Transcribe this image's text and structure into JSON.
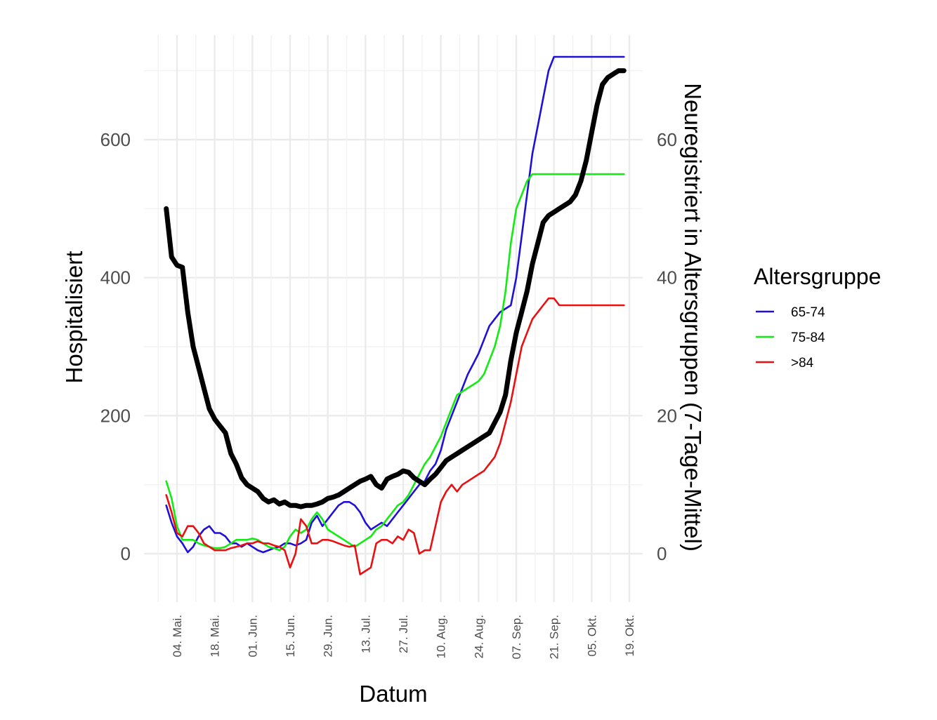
{
  "chart_data": {
    "type": "line",
    "xlabel": "Datum",
    "ylabel": "Hospitalisiert",
    "y2label": "Neuregistriert in Altersgruppen (7-Tage-Mittel)",
    "x_ticks": [
      "04. Mai.",
      "18. Mai.",
      "01. Jun.",
      "15. Jun.",
      "29. Jun.",
      "13. Jul.",
      "27. Jul.",
      "10. Aug.",
      "24. Aug.",
      "07. Sep.",
      "21. Sep.",
      "05. Okt.",
      "19. Okt."
    ],
    "y_ticks": [
      0,
      200,
      400,
      600
    ],
    "y2_ticks": [
      0,
      20,
      40,
      60
    ],
    "ylim": [
      -60,
      740
    ],
    "y2lim": [
      -6,
      74
    ],
    "grid": true,
    "legend": {
      "title": "Altersgruppe",
      "placement": "right",
      "items": [
        {
          "label": "65-74",
          "color": "#1f10d8"
        },
        {
          "label": "75-84",
          "color": "#12ec12"
        },
        {
          "label": ">84",
          "color": "#e81010"
        }
      ]
    },
    "x": [
      "2020-04-30",
      "2020-05-02",
      "2020-05-04",
      "2020-05-06",
      "2020-05-08",
      "2020-05-10",
      "2020-05-12",
      "2020-05-14",
      "2020-05-16",
      "2020-05-18",
      "2020-05-20",
      "2020-05-22",
      "2020-05-24",
      "2020-05-26",
      "2020-05-28",
      "2020-05-30",
      "2020-06-01",
      "2020-06-03",
      "2020-06-05",
      "2020-06-07",
      "2020-06-09",
      "2020-06-11",
      "2020-06-13",
      "2020-06-15",
      "2020-06-17",
      "2020-06-19",
      "2020-06-21",
      "2020-06-23",
      "2020-06-25",
      "2020-06-27",
      "2020-06-29",
      "2020-07-01",
      "2020-07-03",
      "2020-07-05",
      "2020-07-07",
      "2020-07-09",
      "2020-07-11",
      "2020-07-13",
      "2020-07-15",
      "2020-07-17",
      "2020-07-19",
      "2020-07-21",
      "2020-07-23",
      "2020-07-25",
      "2020-07-27",
      "2020-07-29",
      "2020-07-31",
      "2020-08-02",
      "2020-08-04",
      "2020-08-06",
      "2020-08-08",
      "2020-08-10",
      "2020-08-12",
      "2020-08-14",
      "2020-08-16",
      "2020-08-18",
      "2020-08-20",
      "2020-08-22",
      "2020-08-24",
      "2020-08-26",
      "2020-08-28",
      "2020-08-30",
      "2020-09-01",
      "2020-09-03",
      "2020-09-05",
      "2020-09-07",
      "2020-09-09",
      "2020-09-11",
      "2020-09-13",
      "2020-09-15",
      "2020-09-17",
      "2020-09-19",
      "2020-09-21",
      "2020-09-23",
      "2020-09-25",
      "2020-09-27",
      "2020-09-29",
      "2020-10-01",
      "2020-10-03",
      "2020-10-05",
      "2020-10-07",
      "2020-10-09",
      "2020-10-11",
      "2020-10-13",
      "2020-10-15",
      "2020-10-17"
    ],
    "series": [
      {
        "name": "Hospitalisiert",
        "axis": "left",
        "color": "#000000",
        "values": [
          500,
          430,
          418,
          415,
          350,
          300,
          270,
          240,
          210,
          195,
          185,
          175,
          145,
          130,
          110,
          100,
          95,
          90,
          80,
          75,
          78,
          72,
          75,
          70,
          70,
          68,
          70,
          70,
          72,
          75,
          80,
          82,
          85,
          90,
          95,
          100,
          105,
          108,
          112,
          100,
          95,
          108,
          112,
          115,
          120,
          118,
          110,
          105,
          100,
          108,
          115,
          125,
          135,
          140,
          145,
          150,
          155,
          160,
          165,
          170,
          175,
          190,
          205,
          230,
          280,
          320,
          350,
          380,
          420,
          450,
          480,
          490,
          495,
          500,
          505,
          510,
          520,
          540,
          570,
          610,
          650,
          680,
          690,
          695,
          700,
          700
        ]
      },
      {
        "name": "65-74",
        "axis": "right",
        "color": "#1f10d8",
        "values": [
          7,
          4.5,
          2.5,
          1.5,
          0.2,
          1,
          2.5,
          3.5,
          4,
          3,
          3,
          2.5,
          1.5,
          1.5,
          1,
          1.5,
          1,
          0.5,
          0.2,
          0.5,
          0.8,
          1,
          1.5,
          1.5,
          1.2,
          1.5,
          2,
          4.5,
          5.5,
          4,
          5,
          6,
          7,
          7.5,
          7.5,
          7,
          6,
          4.5,
          3.5,
          4,
          4.5,
          4,
          5,
          6,
          7,
          8,
          9,
          10,
          10.5,
          12,
          13,
          15,
          18,
          20,
          22,
          24,
          26,
          27.5,
          29,
          31,
          33,
          34,
          35,
          35.5,
          36,
          40,
          46,
          52,
          58,
          62,
          66,
          70,
          72,
          72,
          72,
          72,
          72,
          72,
          72,
          72,
          72,
          72,
          72,
          72,
          72,
          72
        ]
      },
      {
        "name": "75-84",
        "axis": "right",
        "color": "#12ec12",
        "values": [
          10.5,
          8,
          4,
          2,
          2,
          2,
          1.5,
          1.2,
          1,
          0.8,
          0.8,
          1,
          1.5,
          2,
          2,
          2,
          2.2,
          2,
          1.5,
          1,
          0.8,
          0.5,
          1,
          2.5,
          3.5,
          3,
          3.5,
          5,
          6,
          5,
          3.5,
          3,
          2.5,
          2,
          1.5,
          1,
          1.5,
          2,
          2.5,
          3.5,
          4,
          5,
          6,
          7,
          7.5,
          8.5,
          10,
          11.5,
          13,
          14,
          15.5,
          17,
          19,
          21,
          23,
          23.5,
          24,
          24.5,
          25,
          26,
          28,
          30,
          33,
          38,
          45,
          50,
          52,
          54,
          55,
          55,
          55,
          55,
          55,
          55,
          55,
          55,
          55,
          55,
          55,
          55,
          55,
          55,
          55,
          55,
          55,
          55
        ]
      },
      {
        "name": ">84",
        "axis": "right",
        "color": "#e81010",
        "values": [
          8.5,
          6,
          3,
          2.5,
          4,
          4,
          3,
          1.5,
          1,
          0.5,
          0.5,
          0.5,
          0.8,
          1,
          1.2,
          1.5,
          1.5,
          1.8,
          1.5,
          1.5,
          1.2,
          1,
          0.5,
          -2,
          0,
          5,
          4,
          1.5,
          1.5,
          2,
          2,
          1.8,
          1.5,
          1.2,
          1,
          1.2,
          -3,
          -2.5,
          -2,
          1.5,
          2,
          2,
          1.5,
          2.5,
          2,
          3.5,
          3,
          0,
          0.5,
          0.5,
          4,
          7.5,
          9,
          10,
          9,
          10,
          10.5,
          11,
          11.5,
          12,
          13,
          14,
          16,
          19,
          22,
          26,
          30,
          32,
          34,
          35,
          36,
          37,
          37,
          36,
          36,
          36,
          36,
          36,
          36,
          36,
          36,
          36,
          36,
          36,
          36,
          36
        ]
      }
    ]
  }
}
